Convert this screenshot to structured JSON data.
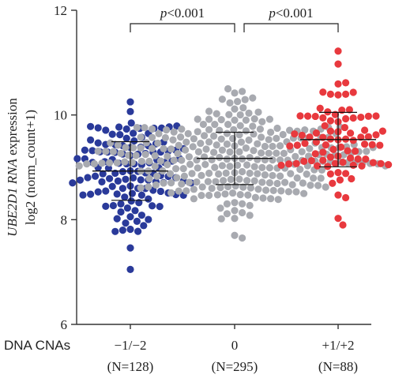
{
  "chart_data": {
    "type": "scatter",
    "subtype": "beeswarm-dot-plot",
    "ylabel_italic": "UBE2D1 RNA",
    "ylabel_rest": " expression",
    "ylabel_line2": "log2 (norm_count+1)",
    "ylim": [
      6,
      12
    ],
    "yticks": [
      6,
      8,
      10,
      12
    ],
    "x_prefix_label": "DNA CNAs",
    "groups": [
      {
        "category": "−1/−2",
        "n_label": "(N=128)",
        "n": 128,
        "mean": 8.93,
        "sd": 0.56,
        "min": 7.05,
        "max": 10.25,
        "color": "#2a3a9a"
      },
      {
        "category": "0",
        "n_label": "(N=295)",
        "n": 295,
        "mean": 9.17,
        "sd": 0.5,
        "min": 7.65,
        "max": 10.5,
        "color": "#a8aab0"
      },
      {
        "category": "+1/+2",
        "n_label": "(N=88)",
        "n": 88,
        "mean": 9.53,
        "sd": 0.52,
        "min": 7.9,
        "max": 11.22,
        "color": "#e8393e"
      }
    ],
    "comparisons": [
      {
        "from": 0,
        "to": 1,
        "label_italic": "p",
        "label_rest": "<0.001"
      },
      {
        "from": 1,
        "to": 2,
        "label_italic": "p",
        "label_rest": "<0.001"
      }
    ]
  }
}
